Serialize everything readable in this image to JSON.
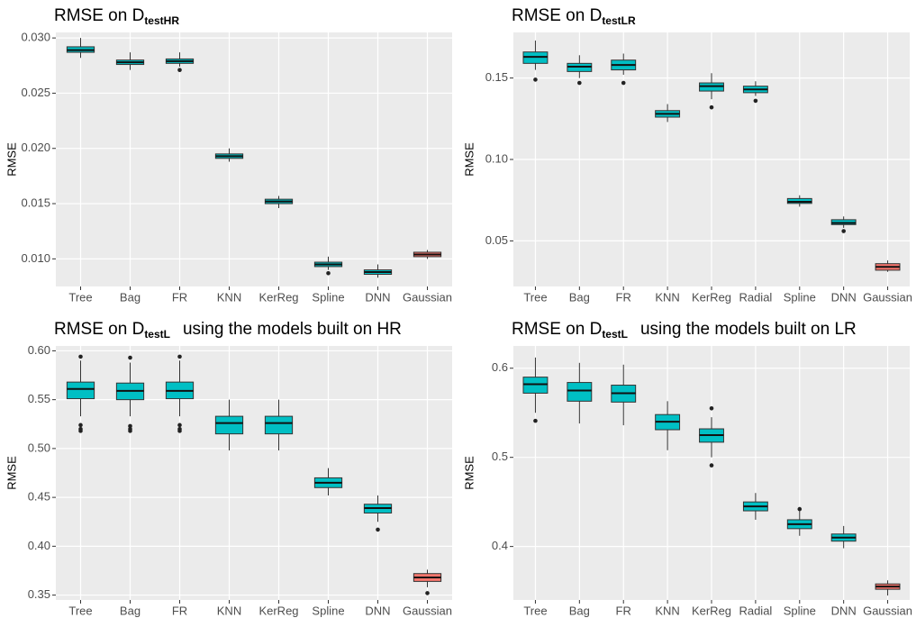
{
  "chart_data": [
    {
      "type": "box",
      "title": "RMSE on D",
      "title_subscript": "testHR",
      "y_label": "RMSE",
      "categories": [
        "Tree",
        "Bag",
        "FR",
        "KNN",
        "KerReg",
        "Spline",
        "DNN",
        "Gaussian"
      ],
      "boxes": [
        {
          "low": 0.0282,
          "q1": 0.0287,
          "median": 0.0289,
          "q3": 0.0292,
          "high": 0.03,
          "color": "#00BFC4"
        },
        {
          "low": 0.0271,
          "q1": 0.0276,
          "median": 0.0278,
          "q3": 0.028,
          "high": 0.0287,
          "color": "#00BFC4"
        },
        {
          "low": 0.0274,
          "q1": 0.0277,
          "median": 0.0279,
          "q3": 0.0281,
          "high": 0.0287,
          "outliers": [
            0.0271
          ],
          "color": "#00BFC4"
        },
        {
          "low": 0.0188,
          "q1": 0.0191,
          "median": 0.0193,
          "q3": 0.0195,
          "high": 0.02,
          "color": "#00BFC4"
        },
        {
          "low": 0.0146,
          "q1": 0.015,
          "median": 0.0152,
          "q3": 0.0154,
          "high": 0.0157,
          "color": "#00BFC4"
        },
        {
          "low": 0.009,
          "q1": 0.0093,
          "median": 0.0095,
          "q3": 0.0097,
          "high": 0.0102,
          "outliers": [
            0.0087
          ],
          "color": "#00BFC4"
        },
        {
          "low": 0.0083,
          "q1": 0.0086,
          "median": 0.0088,
          "q3": 0.009,
          "high": 0.0095,
          "color": "#00BFC4"
        },
        {
          "low": 0.01,
          "q1": 0.0102,
          "median": 0.0104,
          "q3": 0.0106,
          "high": 0.0108,
          "color": "#F8766D"
        }
      ],
      "ylim": [
        0.0075,
        0.0305
      ],
      "yticks": [
        {
          "value": 0.01,
          "label": "0.010"
        },
        0.015,
        {
          "value": 0.02,
          "label": "0.020"
        },
        0.025,
        {
          "value": 0.03,
          "label": "0.030"
        }
      ],
      "grid": true
    },
    {
      "type": "box",
      "title": "RMSE on D",
      "title_subscript": "testLR",
      "y_label": "RMSE",
      "categories": [
        "Tree",
        "Bag",
        "FR",
        "KNN",
        "KerReg",
        "Radial",
        "Spline",
        "DNN",
        "Gaussian"
      ],
      "boxes": [
        {
          "low": 0.155,
          "q1": 0.159,
          "median": 0.163,
          "q3": 0.166,
          "high": 0.173,
          "outliers": [
            0.149
          ],
          "color": "#00BFC4"
        },
        {
          "low": 0.15,
          "q1": 0.154,
          "median": 0.157,
          "q3": 0.159,
          "high": 0.164,
          "outliers": [
            0.147
          ],
          "color": "#00BFC4"
        },
        {
          "low": 0.152,
          "q1": 0.155,
          "median": 0.158,
          "q3": 0.161,
          "high": 0.165,
          "outliers": [
            0.147
          ],
          "color": "#00BFC4"
        },
        {
          "low": 0.123,
          "q1": 0.126,
          "median": 0.128,
          "q3": 0.13,
          "high": 0.134,
          "color": "#00BFC4"
        },
        {
          "low": 0.137,
          "q1": 0.142,
          "median": 0.145,
          "q3": 0.147,
          "high": 0.153,
          "outliers": [
            0.132
          ],
          "color": "#00BFC4"
        },
        {
          "low": 0.139,
          "q1": 0.141,
          "median": 0.143,
          "q3": 0.145,
          "high": 0.148,
          "outliers": [
            0.136
          ],
          "color": "#00BFC4"
        },
        {
          "low": 0.071,
          "q1": 0.073,
          "median": 0.074,
          "q3": 0.076,
          "high": 0.078,
          "color": "#00BFC4"
        },
        {
          "low": 0.058,
          "q1": 0.06,
          "median": 0.061,
          "q3": 0.063,
          "high": 0.065,
          "outliers": [
            0.056
          ],
          "color": "#00BFC4"
        },
        {
          "low": 0.031,
          "q1": 0.032,
          "median": 0.034,
          "q3": 0.036,
          "high": 0.038,
          "color": "#F8766D"
        }
      ],
      "ylim": [
        0.022,
        0.178
      ],
      "yticks": [
        0.05,
        {
          "value": 0.1,
          "label": "0.10"
        },
        0.15
      ],
      "grid": true
    },
    {
      "type": "box",
      "title": "RMSE on D",
      "title_subscript": "testL",
      "title_suffix": "using the models built on HR",
      "y_label": "RMSE",
      "categories": [
        "Tree",
        "Bag",
        "FR",
        "KNN",
        "KerReg",
        "Spline",
        "DNN",
        "Gaussian"
      ],
      "boxes": [
        {
          "low": 0.533,
          "q1": 0.551,
          "median": 0.561,
          "q3": 0.568,
          "high": 0.59,
          "outliers": [
            0.594,
            0.524,
            0.52,
            0.518
          ],
          "color": "#00BFC4"
        },
        {
          "low": 0.533,
          "q1": 0.55,
          "median": 0.559,
          "q3": 0.567,
          "high": 0.588,
          "outliers": [
            0.593,
            0.523,
            0.52,
            0.518
          ],
          "color": "#00BFC4"
        },
        {
          "low": 0.533,
          "q1": 0.551,
          "median": 0.559,
          "q3": 0.568,
          "high": 0.59,
          "outliers": [
            0.594,
            0.524,
            0.52,
            0.518
          ],
          "color": "#00BFC4"
        },
        {
          "low": 0.498,
          "q1": 0.515,
          "median": 0.526,
          "q3": 0.533,
          "high": 0.55,
          "color": "#00BFC4"
        },
        {
          "low": 0.498,
          "q1": 0.515,
          "median": 0.526,
          "q3": 0.533,
          "high": 0.55,
          "color": "#00BFC4"
        },
        {
          "low": 0.452,
          "q1": 0.46,
          "median": 0.465,
          "q3": 0.47,
          "high": 0.48,
          "color": "#00BFC4"
        },
        {
          "low": 0.425,
          "q1": 0.434,
          "median": 0.439,
          "q3": 0.443,
          "high": 0.452,
          "outliers": [
            0.417
          ],
          "color": "#00BFC4"
        },
        {
          "low": 0.358,
          "q1": 0.364,
          "median": 0.368,
          "q3": 0.372,
          "high": 0.376,
          "outliers": [
            0.352
          ],
          "color": "#F8766D"
        }
      ],
      "ylim": [
        0.345,
        0.605
      ],
      "yticks": [
        0.35,
        {
          "value": 0.4,
          "label": "0.40"
        },
        0.45,
        {
          "value": 0.5,
          "label": "0.50"
        },
        0.55,
        {
          "value": 0.6,
          "label": "0.60"
        }
      ],
      "grid": true
    },
    {
      "type": "box",
      "title": "RMSE on D",
      "title_subscript": "testL",
      "title_suffix": "using the models built on LR",
      "y_label": "RMSE",
      "categories": [
        "Tree",
        "Bag",
        "FR",
        "KNN",
        "KerReg",
        "Radial",
        "Spline",
        "DNN",
        "Gaussian"
      ],
      "boxes": [
        {
          "low": 0.55,
          "q1": 0.572,
          "median": 0.582,
          "q3": 0.59,
          "high": 0.612,
          "outliers": [
            0.541
          ],
          "color": "#00BFC4"
        },
        {
          "low": 0.538,
          "q1": 0.563,
          "median": 0.575,
          "q3": 0.584,
          "high": 0.606,
          "color": "#00BFC4"
        },
        {
          "low": 0.536,
          "q1": 0.562,
          "median": 0.572,
          "q3": 0.581,
          "high": 0.604,
          "color": "#00BFC4"
        },
        {
          "low": 0.508,
          "q1": 0.531,
          "median": 0.54,
          "q3": 0.548,
          "high": 0.563,
          "color": "#00BFC4"
        },
        {
          "low": 0.5,
          "q1": 0.517,
          "median": 0.525,
          "q3": 0.532,
          "high": 0.545,
          "outliers": [
            0.555,
            0.491
          ],
          "color": "#00BFC4"
        },
        {
          "low": 0.43,
          "q1": 0.44,
          "median": 0.445,
          "q3": 0.45,
          "high": 0.46,
          "color": "#00BFC4"
        },
        {
          "low": 0.412,
          "q1": 0.42,
          "median": 0.425,
          "q3": 0.43,
          "high": 0.44,
          "outliers": [
            0.442
          ],
          "color": "#00BFC4"
        },
        {
          "low": 0.398,
          "q1": 0.406,
          "median": 0.41,
          "q3": 0.414,
          "high": 0.423,
          "color": "#00BFC4"
        },
        {
          "low": 0.345,
          "q1": 0.352,
          "median": 0.355,
          "q3": 0.358,
          "high": 0.362,
          "color": "#F8766D"
        }
      ],
      "ylim": [
        0.34,
        0.625
      ],
      "yticks": [
        0.4,
        0.5,
        0.6
      ],
      "grid": true
    }
  ]
}
